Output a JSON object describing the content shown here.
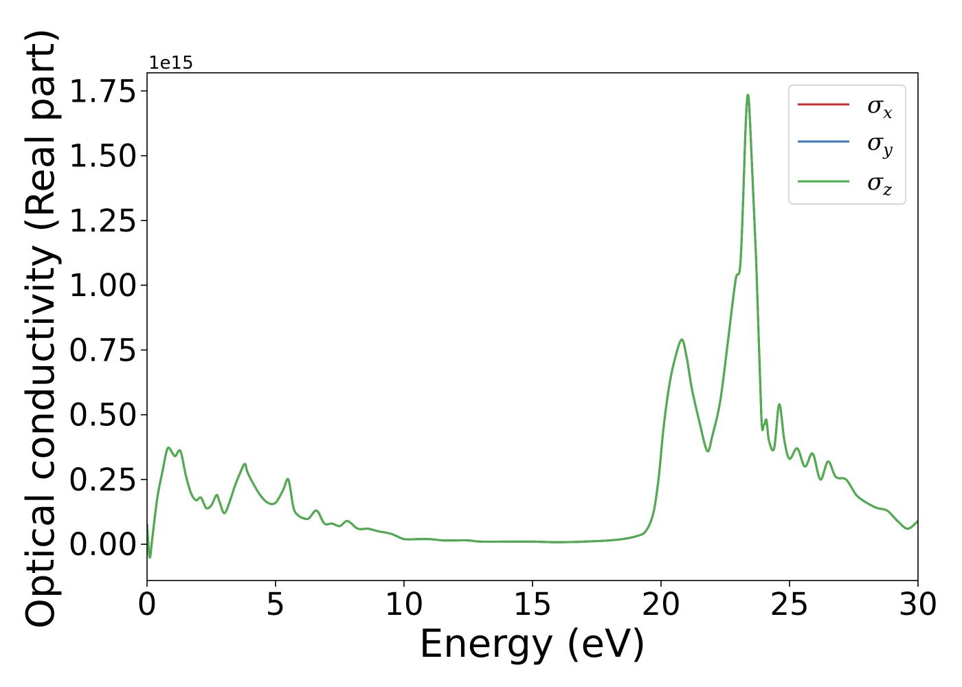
{
  "chart_data": {
    "type": "line",
    "xlabel": "Energy (eV)",
    "ylabel": "Optical conductivity (Real part)",
    "y_offset_text": "1e15",
    "xlim": [
      0,
      30
    ],
    "ylim": [
      -0.14,
      1.82
    ],
    "x_ticks": [
      0,
      5,
      10,
      15,
      20,
      25,
      30
    ],
    "y_ticks": [
      0.0,
      0.25,
      0.5,
      0.75,
      1.0,
      1.25,
      1.5,
      1.75
    ],
    "x_tick_labels": [
      "0",
      "5",
      "10",
      "15",
      "20",
      "25",
      "30"
    ],
    "y_tick_labels": [
      "0.00",
      "0.25",
      "0.50",
      "0.75",
      "1.00",
      "1.25",
      "1.50",
      "1.75"
    ],
    "grid": false,
    "legend_position": "top-right",
    "series": [
      {
        "name": "σx",
        "symbol": "σ",
        "subscript": "x",
        "color": "#d62728",
        "ref": "shared"
      },
      {
        "name": "σy",
        "symbol": "σ",
        "subscript": "y",
        "color": "#3a7ab8",
        "ref": "shared"
      },
      {
        "name": "σz",
        "symbol": "σ",
        "subscript": "z",
        "color": "#4daf4a",
        "ref": "shared"
      }
    ],
    "shared_curve": {
      "x": [
        0.0,
        0.1,
        0.2,
        0.4,
        0.6,
        0.8,
        1.0,
        1.1,
        1.3,
        1.5,
        1.7,
        1.9,
        2.1,
        2.3,
        2.5,
        2.7,
        2.8,
        3.0,
        3.2,
        3.4,
        3.6,
        3.8,
        3.9,
        4.1,
        4.4,
        4.7,
        5.0,
        5.3,
        5.5,
        5.7,
        5.9,
        6.1,
        6.3,
        6.6,
        6.9,
        7.2,
        7.5,
        7.8,
        8.2,
        8.6,
        9.0,
        9.5,
        10.0,
        10.5,
        11.0,
        11.5,
        12.0,
        12.5,
        13.0,
        14.0,
        15.0,
        16.0,
        17.0,
        18.0,
        18.5,
        19.0,
        19.4,
        19.7,
        19.9,
        20.1,
        20.3,
        20.5,
        20.8,
        21.0,
        21.2,
        21.5,
        21.8,
        22.0,
        22.3,
        22.6,
        22.9,
        23.1,
        23.3,
        23.4,
        23.5,
        23.7,
        23.9,
        24.0,
        24.1,
        24.2,
        24.4,
        24.6,
        24.8,
        25.0,
        25.3,
        25.6,
        25.9,
        26.2,
        26.5,
        26.8,
        27.2,
        27.6,
        28.0,
        28.4,
        28.8,
        29.2,
        29.6,
        30.0
      ],
      "y": [
        0.08,
        -0.05,
        0.02,
        0.18,
        0.28,
        0.37,
        0.35,
        0.34,
        0.36,
        0.27,
        0.2,
        0.17,
        0.18,
        0.14,
        0.15,
        0.19,
        0.17,
        0.12,
        0.16,
        0.22,
        0.27,
        0.31,
        0.28,
        0.24,
        0.19,
        0.16,
        0.16,
        0.21,
        0.25,
        0.14,
        0.11,
        0.1,
        0.1,
        0.13,
        0.08,
        0.08,
        0.07,
        0.09,
        0.06,
        0.06,
        0.05,
        0.04,
        0.02,
        0.02,
        0.02,
        0.015,
        0.015,
        0.015,
        0.01,
        0.01,
        0.01,
        0.008,
        0.01,
        0.015,
        0.02,
        0.03,
        0.05,
        0.12,
        0.25,
        0.45,
        0.6,
        0.7,
        0.79,
        0.72,
        0.6,
        0.47,
        0.36,
        0.42,
        0.55,
        0.78,
        1.02,
        1.1,
        1.63,
        1.73,
        1.55,
        1.1,
        0.5,
        0.46,
        0.48,
        0.4,
        0.37,
        0.54,
        0.4,
        0.33,
        0.37,
        0.3,
        0.35,
        0.25,
        0.32,
        0.26,
        0.25,
        0.19,
        0.16,
        0.14,
        0.13,
        0.09,
        0.06,
        0.09
      ]
    }
  }
}
